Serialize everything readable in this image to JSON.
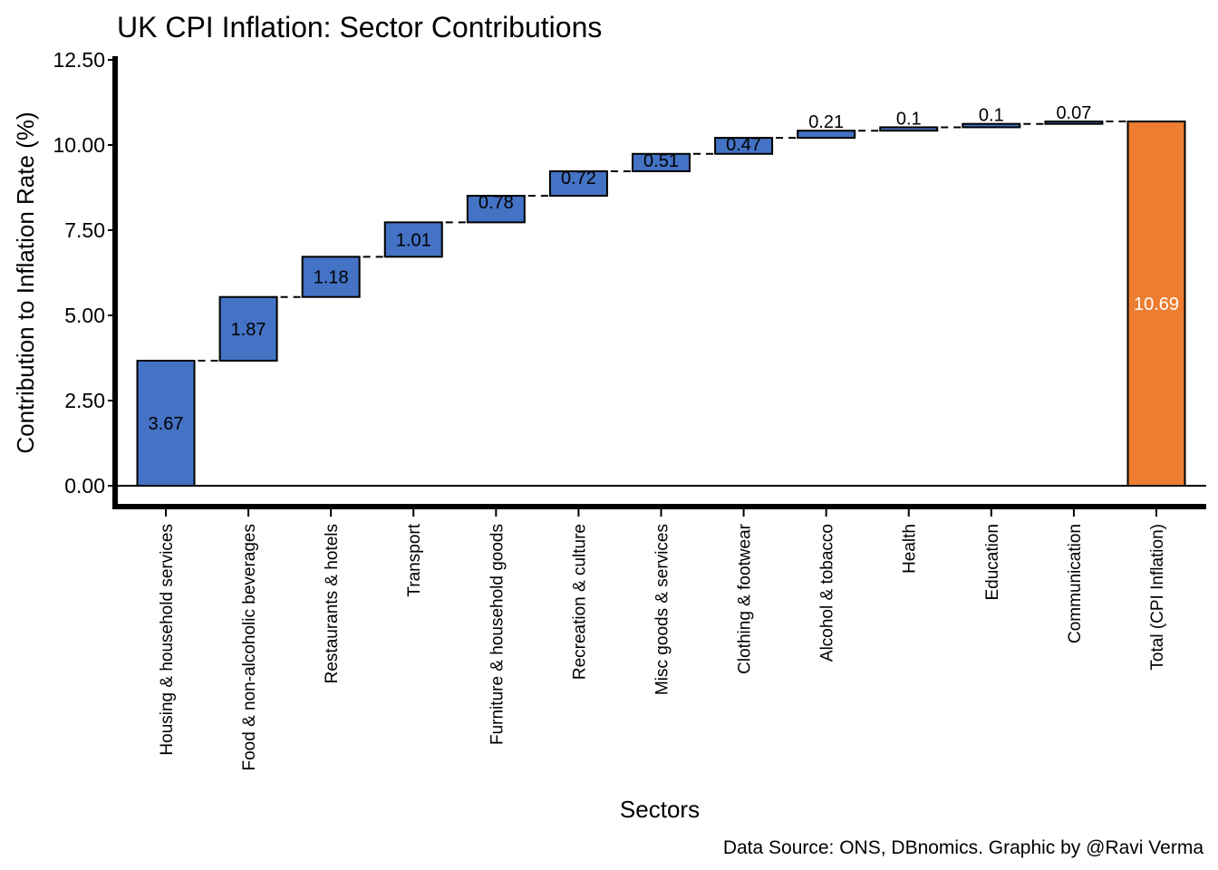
{
  "chart_data": {
    "type": "bar",
    "subtype": "waterfall",
    "title": "UK CPI Inflation: Sector Contributions",
    "xlabel": "Sectors",
    "ylabel": "Contribution to Inflation Rate (%)",
    "caption": "Data Source: ONS, DBnomics. Graphic by @Ravi Verma",
    "ylim": [
      -0.5,
      12.5
    ],
    "yticks": [
      "0.00",
      "2.50",
      "5.00",
      "7.50",
      "10.00",
      "12.50"
    ],
    "categories": [
      "Housing & household services",
      "Food & non-alcoholic beverages",
      "Restaurants & hotels",
      "Transport",
      "Furniture & household goods",
      "Recreation & culture",
      "Misc goods & services",
      "Clothing & footwear",
      "Alcohol & tobacco",
      "Health",
      "Education",
      "Communication",
      "Total (CPI Inflation)"
    ],
    "values": [
      3.67,
      1.87,
      1.18,
      1.01,
      0.78,
      0.72,
      0.51,
      0.47,
      0.21,
      0.1,
      0.1,
      0.07,
      10.69
    ],
    "value_labels": [
      "3.67",
      "1.87",
      "1.18",
      "1.01",
      "0.78",
      "0.72",
      "0.51",
      "0.47",
      "0.21",
      "0.1",
      "0.1",
      "0.07",
      "10.69"
    ],
    "total_index": 12,
    "grid": false,
    "colors": {
      "increase": "#4472C4",
      "total": "#ED7D31",
      "axis": "#000000",
      "total_label": "#ffffff"
    }
  }
}
